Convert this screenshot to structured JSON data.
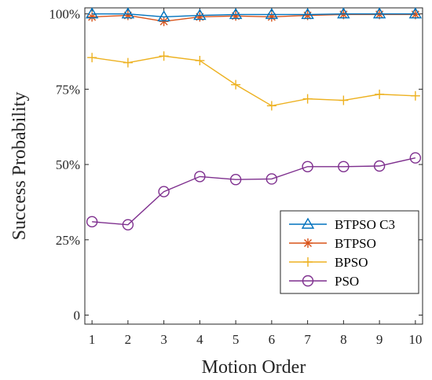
{
  "chart_data": {
    "type": "line",
    "xlabel": "Motion Order",
    "ylabel": "Success Probability",
    "x": [
      1,
      2,
      3,
      4,
      5,
      6,
      7,
      8,
      9,
      10
    ],
    "xlim": [
      0.8,
      10.2
    ],
    "ylim": [
      -0.03,
      1.02
    ],
    "x_ticks": [
      "1",
      "2",
      "3",
      "4",
      "5",
      "6",
      "7",
      "8",
      "9",
      "10"
    ],
    "y_ticks": [
      {
        "value": 0,
        "label": "0"
      },
      {
        "value": 0.25,
        "label": "25%"
      },
      {
        "value": 0.5,
        "label": "50%"
      },
      {
        "value": 0.75,
        "label": "75%"
      },
      {
        "value": 1.0,
        "label": "100%"
      }
    ],
    "grid": false,
    "legend_position": "bottom-right",
    "series": [
      {
        "name": "BTPSO C3",
        "marker": "triangle",
        "color": "#0072BD",
        "values": [
          1.0,
          1.0,
          0.99,
          0.995,
          0.998,
          0.998,
          0.998,
          1.0,
          1.0,
          1.0
        ]
      },
      {
        "name": "BTPSO",
        "marker": "asterisk",
        "color": "#D95319",
        "values": [
          0.99,
          0.995,
          0.975,
          0.99,
          0.993,
          0.99,
          0.995,
          0.998,
          0.998,
          0.998
        ]
      },
      {
        "name": "BPSO",
        "marker": "plus",
        "color": "#EDB120",
        "values": [
          0.855,
          0.838,
          0.86,
          0.845,
          0.765,
          0.695,
          0.718,
          0.713,
          0.733,
          0.728
        ]
      },
      {
        "name": "PSO",
        "marker": "circle",
        "color": "#7E2F8E",
        "values": [
          0.31,
          0.3,
          0.41,
          0.46,
          0.45,
          0.452,
          0.493,
          0.493,
          0.495,
          0.522
        ]
      }
    ]
  }
}
